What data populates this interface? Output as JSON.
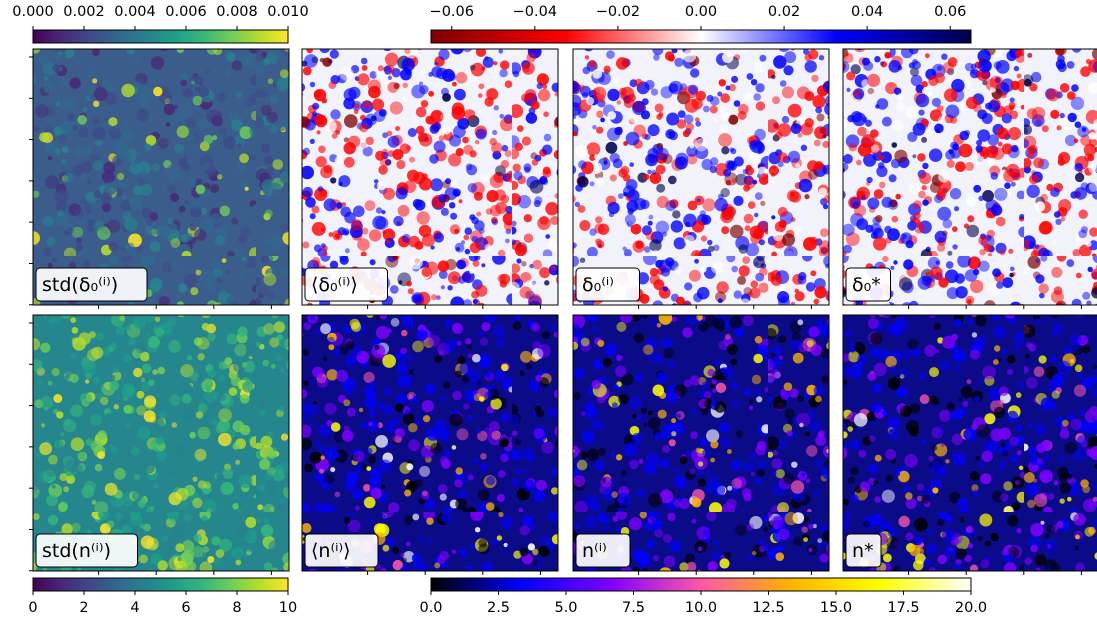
{
  "chart_data": [
    {
      "type": "heatmap",
      "colormap": "viridis",
      "colorbar": {
        "placement": "top-left",
        "range": [
          0.0,
          0.01
        ],
        "tick_labels": [
          "0.000",
          "0.002",
          "0.004",
          "0.006",
          "0.008",
          "0.010"
        ]
      },
      "panels": [
        {
          "label_text": "std(δ₀⁽ⁱ⁾)",
          "row": 1,
          "col": 1
        }
      ]
    },
    {
      "type": "heatmap",
      "colormap": "seismic_r",
      "colorbar": {
        "placement": "top-right",
        "range": [
          -0.065,
          0.065
        ],
        "tick_labels": [
          "−0.06",
          "−0.04",
          "−0.02",
          "0.00",
          "0.02",
          "0.04",
          "0.06"
        ]
      },
      "panels": [
        {
          "label_text": "⟨δ₀⁽ⁱ⁾⟩",
          "row": 1,
          "col": 2
        },
        {
          "label_text": "δ₀⁽ⁱ⁾",
          "row": 1,
          "col": 3
        },
        {
          "label_text": "δ₀*",
          "row": 1,
          "col": 4
        }
      ]
    },
    {
      "type": "heatmap",
      "colormap": "viridis",
      "colorbar": {
        "placement": "bottom-left",
        "range": [
          0,
          10
        ],
        "tick_labels": [
          "0",
          "2",
          "4",
          "6",
          "8",
          "10"
        ]
      },
      "panels": [
        {
          "label_text": "std(n⁽ⁱ⁾)",
          "row": 2,
          "col": 1
        }
      ]
    },
    {
      "type": "heatmap",
      "colormap": "gnuplot2",
      "colorbar": {
        "placement": "bottom-right",
        "range": [
          0.0,
          20.0
        ],
        "tick_labels": [
          "0.0",
          "2.5",
          "5.0",
          "7.5",
          "10.0",
          "12.5",
          "15.0",
          "17.5",
          "20.0"
        ]
      },
      "panels": [
        {
          "label_text": "⟨n⁽ⁱ⁾⟩",
          "row": 2,
          "col": 2
        },
        {
          "label_text": "n⁽ⁱ⁾",
          "row": 2,
          "col": 3
        },
        {
          "label_text": "n*",
          "row": 2,
          "col": 4
        }
      ]
    }
  ],
  "colormaps": {
    "viridis": [
      "#440154",
      "#482878",
      "#3e4989",
      "#31688e",
      "#26828e",
      "#1f9e89",
      "#35b779",
      "#6ece58",
      "#b5de2b",
      "#fde725"
    ],
    "seismic_r": [
      "#7f0000",
      "#ff0000",
      "#ffffff",
      "#0000ff",
      "#00004c"
    ],
    "gnuplot2": [
      "#000000",
      "#0000ff",
      "#7f00ff",
      "#ff57a8",
      "#ffb300",
      "#ffff00",
      "#ffffff"
    ]
  }
}
